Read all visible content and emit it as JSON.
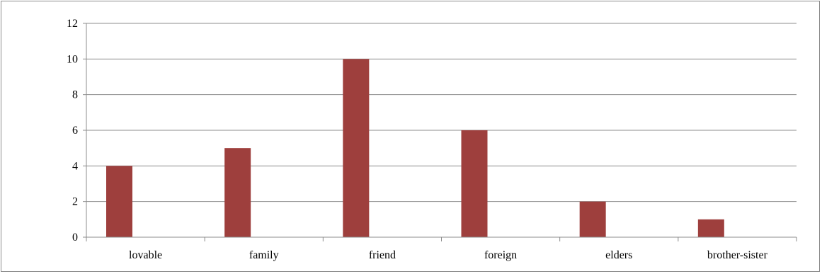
{
  "chart_data": {
    "type": "bar",
    "title": "",
    "xlabel": "",
    "ylabel": "",
    "categories": [
      "lovable",
      "family",
      "friend",
      "foreign",
      "elders",
      "brother-sister"
    ],
    "values": [
      4,
      5,
      10,
      6,
      2,
      1
    ],
    "ylim": [
      0,
      12
    ],
    "yticks": [
      "0",
      "2",
      "4",
      "6",
      "8",
      "10",
      "12"
    ],
    "grid": "horizontal",
    "legend": "none",
    "bar_color": "#9e3f3d",
    "grid_color": "#8c8c8c",
    "axis_color": "#8c8c8c"
  }
}
